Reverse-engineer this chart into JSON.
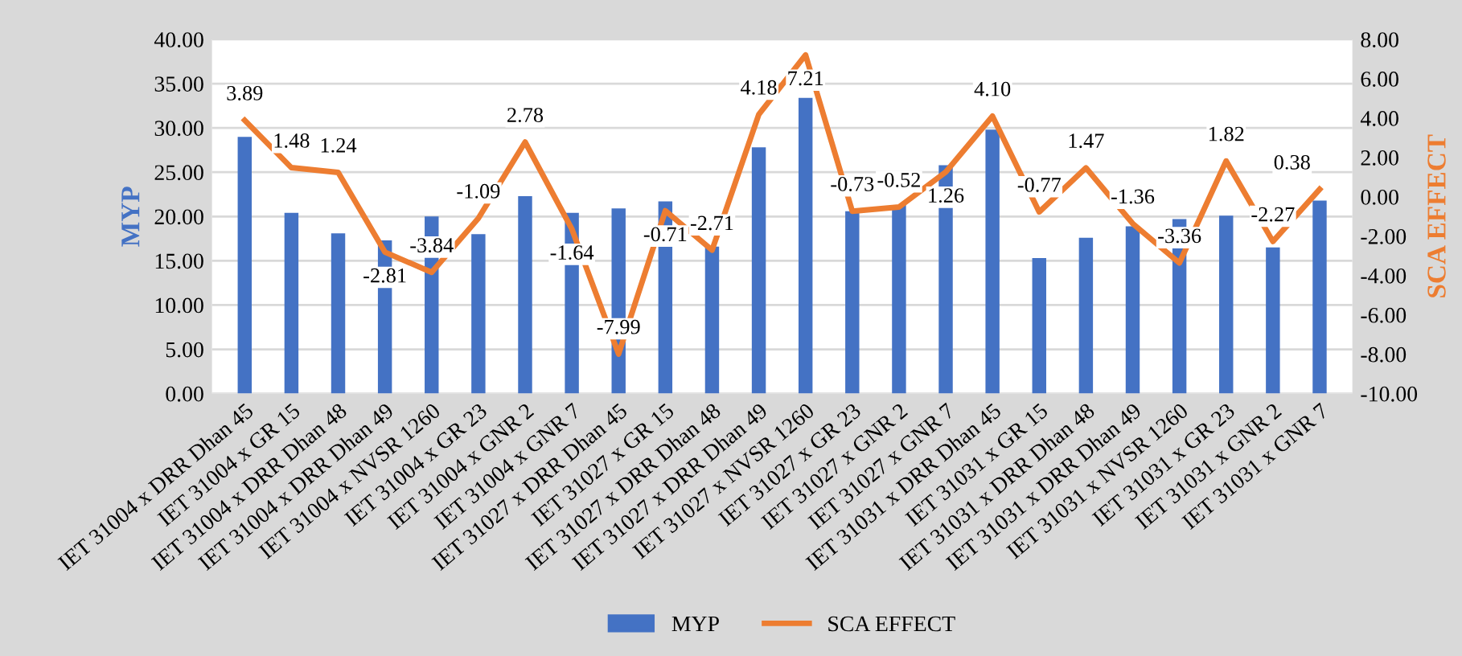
{
  "chart_data": {
    "type": "bar",
    "ylabel": "MYP",
    "y2label": "SCA EFFECT",
    "categories": [
      "IET 31004 x DRR Dhan 45",
      "IET 31004 x GR 15",
      "IET 31004 x DRR Dhan 48",
      "IET 31004 x DRR Dhan 49",
      "IET 31004 x NVSR 1260",
      "IET 31004 x GR 23",
      "IET 31004 x GNR 2",
      "IET 31004 x GNR 7",
      "IET 31027 x DRR Dhan 45",
      "IET 31027 x GR 15",
      "IET 31027 x DRR Dhan 48",
      "IET 31027 x DRR Dhan 49",
      "IET 31027 x NVSR 1260",
      "IET 31027 x GR 23",
      "IET 31027 x GNR 2",
      "IET 31027 x GNR 7",
      "IET 31031 x DRR Dhan 45",
      "IET 31031 x GR 15",
      "IET 31031 x DRR Dhan 48",
      "IET 31031 x DRR Dhan 49",
      "IET 31031 x NVSR 1260",
      "IET 31031 x GR 23",
      "IET 31031 x GNR 2",
      "IET 31031 x GNR 7"
    ],
    "series": [
      {
        "name": "MYP",
        "color": "#4472c4",
        "values": [
          29.0,
          20.4,
          18.1,
          17.3,
          20.0,
          18.0,
          22.3,
          20.4,
          20.9,
          21.7,
          16.6,
          27.8,
          33.4,
          20.6,
          21.3,
          25.8,
          29.8,
          15.3,
          17.6,
          18.9,
          19.7,
          20.1,
          16.5,
          21.8
        ]
      },
      {
        "name": "SCA EFFECT",
        "type": "line",
        "axis": "y2",
        "color": "#ed7d31",
        "value_labels": [
          "3.89",
          "1.48",
          "1.24",
          "-2.81",
          "-3.84",
          "-1.09",
          "2.78",
          "-1.64",
          "-7.99",
          "-0.71",
          "-2.71",
          "4.18",
          "7.21",
          "-0.73",
          "-0.52",
          "1.26",
          "4.10",
          "-0.77",
          "1.47",
          "-1.36",
          "-3.36",
          "1.82",
          "-2.27",
          "0.38"
        ],
        "values": [
          3.89,
          1.48,
          1.24,
          -2.81,
          -3.84,
          -1.09,
          2.78,
          -1.64,
          -7.99,
          -0.71,
          -2.71,
          4.18,
          7.21,
          -0.73,
          -0.52,
          1.26,
          4.1,
          -0.77,
          1.47,
          -1.36,
          -3.36,
          1.82,
          -2.27,
          0.38
        ]
      }
    ],
    "ylim": [
      0,
      40
    ],
    "yticks": [
      {
        "value": 0,
        "label": "0.00"
      },
      {
        "value": 5,
        "label": "5.00"
      },
      {
        "value": 10,
        "label": "10.00"
      },
      {
        "value": 15,
        "label": "15.00"
      },
      {
        "value": 20,
        "label": "20.00"
      },
      {
        "value": 25,
        "label": "25.00"
      },
      {
        "value": 30,
        "label": "30.00"
      },
      {
        "value": 35,
        "label": "35.00"
      },
      {
        "value": 40,
        "label": "40.00"
      }
    ],
    "y2lim": [
      -10,
      8
    ],
    "y2ticks": [
      {
        "value": -10,
        "label": "-10.00"
      },
      {
        "value": -8,
        "label": "-8.00"
      },
      {
        "value": -6,
        "label": "-6.00"
      },
      {
        "value": -4,
        "label": "-4.00"
      },
      {
        "value": -2,
        "label": "-2.00"
      },
      {
        "value": 0,
        "label": "0.00"
      },
      {
        "value": 2,
        "label": "2.00"
      },
      {
        "value": 4,
        "label": "4.00"
      },
      {
        "value": 6,
        "label": "6.00"
      },
      {
        "value": 8,
        "label": "8.00"
      }
    ],
    "grid": "y",
    "legend": "bottom",
    "marker": "none",
    "line_style": "solid"
  }
}
